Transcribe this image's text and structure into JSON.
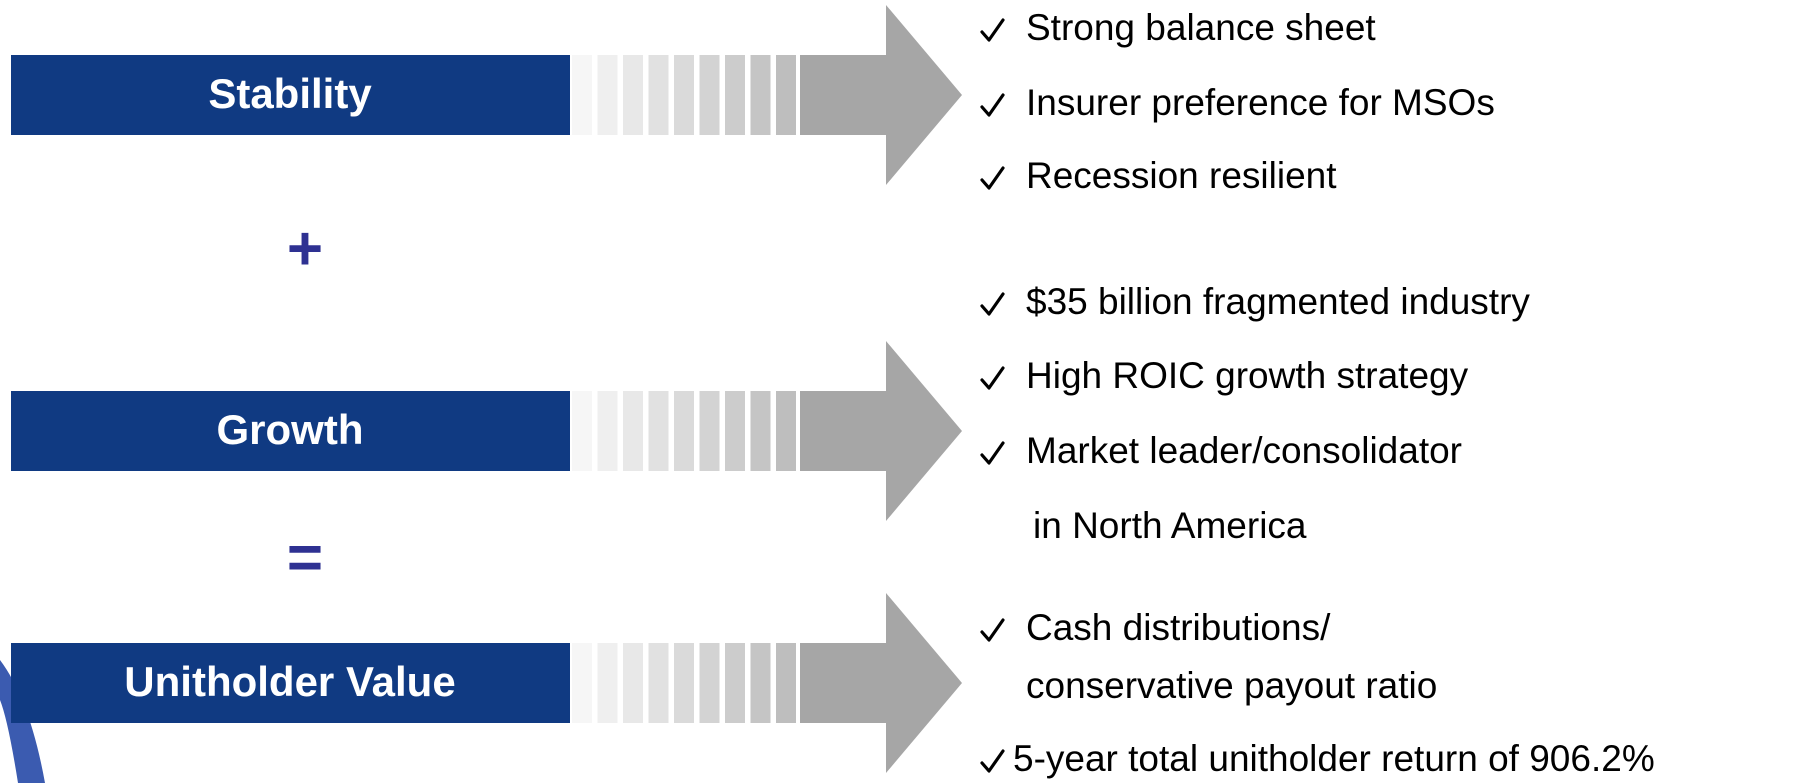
{
  "rows": [
    {
      "label": "Stability",
      "bullets": [
        [
          "Strong balance sheet"
        ],
        [
          "Insurer preference for MSOs"
        ],
        [
          "Recession resilient"
        ]
      ]
    },
    {
      "label": "Growth",
      "bullets": [
        [
          "$35 billion fragmented industry"
        ],
        [
          "High ROIC growth strategy"
        ],
        [
          "Market leader/consolidator",
          "in North America"
        ]
      ]
    },
    {
      "label": "Unitholder Value",
      "bullets": [
        [
          "Cash distributions/",
          "conservative payout ratio"
        ],
        [
          "5-year total unitholder return of 906.2%"
        ]
      ]
    }
  ],
  "operators": [
    "+",
    "="
  ]
}
